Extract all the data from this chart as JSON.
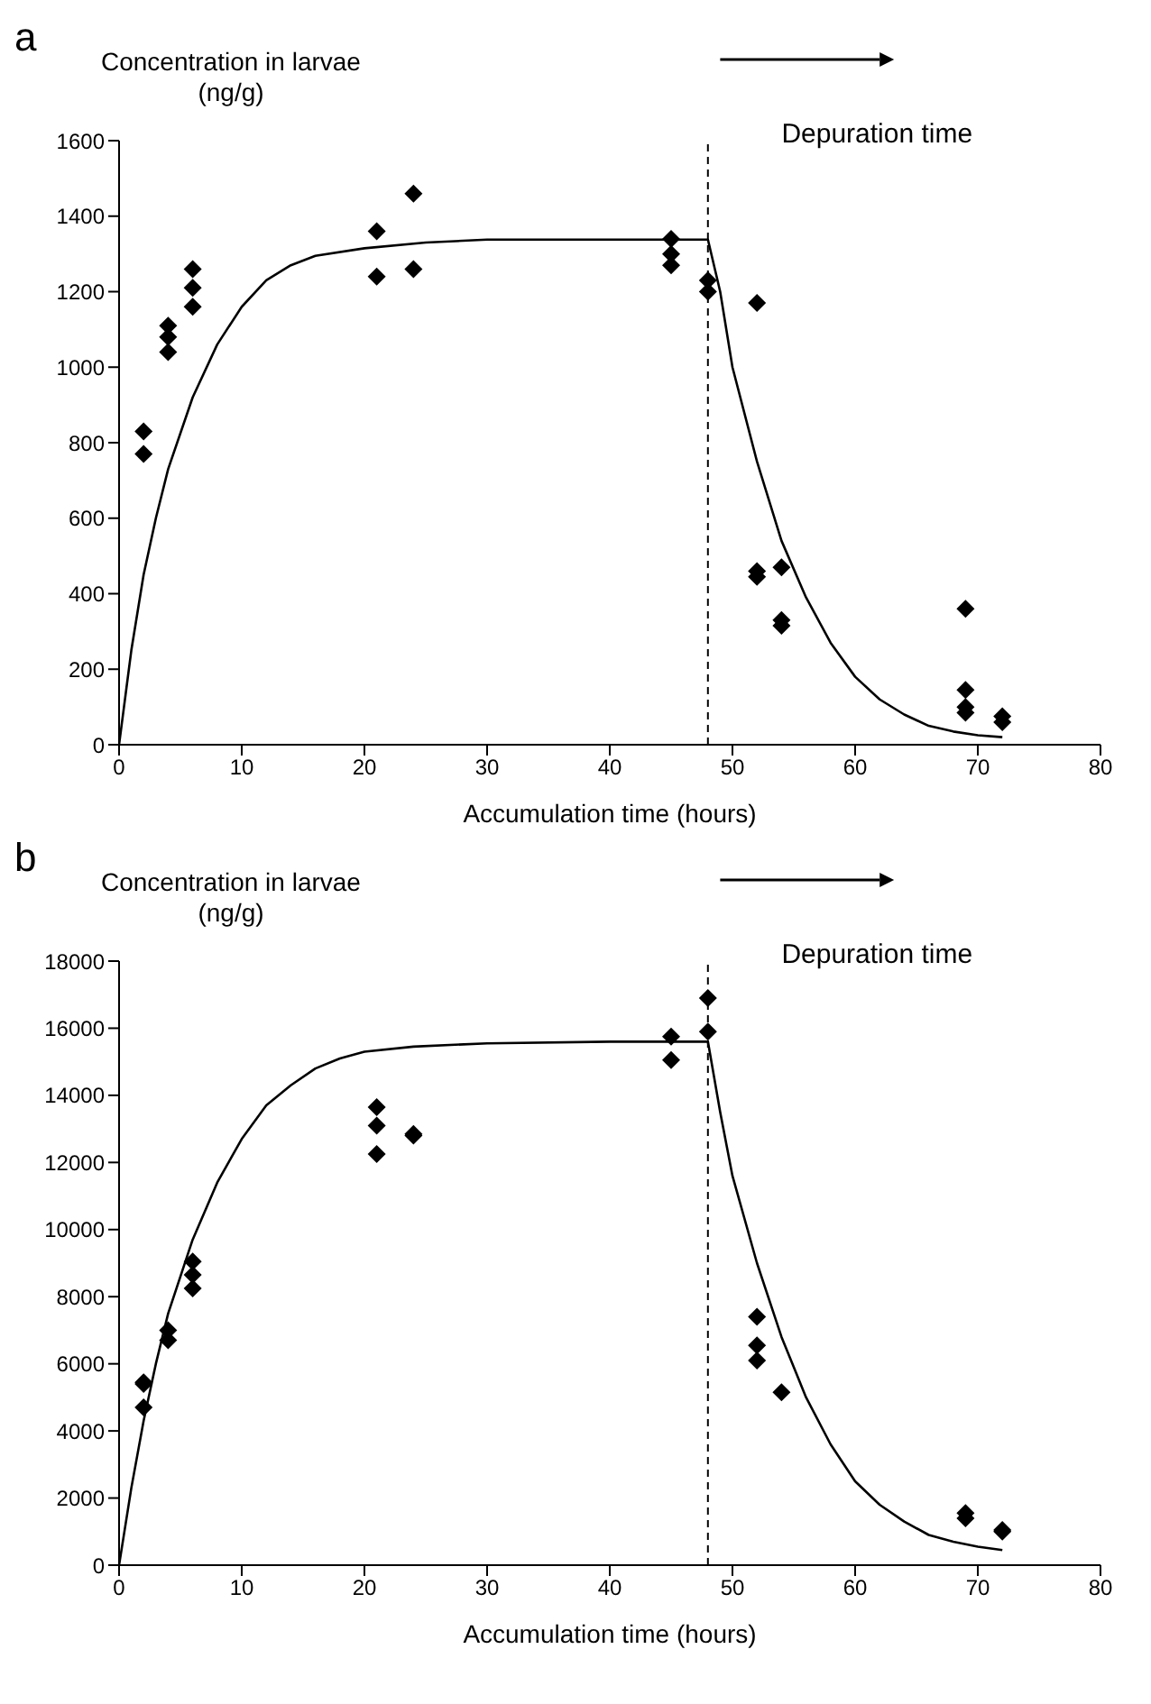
{
  "chart_data": [
    {
      "type": "scatter",
      "title": "a",
      "xlabel": "Accumulation time (hours)",
      "ylabel": "Concentration  in larvae\n(ng/g)",
      "annotations": [
        "Depuration time"
      ],
      "xlim": [
        0,
        80
      ],
      "xticks": [
        0,
        10,
        20,
        30,
        40,
        50,
        60,
        70,
        80
      ],
      "ylim": [
        0,
        1600
      ],
      "yticks": [
        0,
        200,
        400,
        600,
        800,
        1000,
        1200,
        1400,
        1600
      ],
      "marker": "diamond",
      "ref_lines": [
        {
          "axis": "x",
          "value": 48,
          "line_style": "dashed",
          "color": "#000000"
        }
      ],
      "series": [
        {
          "color": "#000000",
          "x": [
            2,
            2,
            4,
            4,
            4,
            6,
            6,
            6,
            21,
            21,
            24,
            24,
            45,
            45,
            45,
            48,
            48,
            52,
            52,
            52,
            54,
            54,
            54,
            69,
            69,
            69,
            69,
            72,
            72
          ],
          "values": [
            830,
            770,
            1110,
            1080,
            1040,
            1260,
            1210,
            1160,
            1360,
            1240,
            1460,
            1260,
            1340,
            1300,
            1270,
            1230,
            1200,
            1170,
            460,
            445,
            470,
            330,
            315,
            360,
            145,
            100,
            85,
            75,
            60
          ]
        },
        {
          "type": "line",
          "color": "#000000",
          "marker": "none",
          "x": [
            0,
            1,
            2,
            3,
            4,
            6,
            8,
            10,
            12,
            14,
            16,
            20,
            25,
            30,
            40,
            48,
            49,
            50,
            52,
            54,
            56,
            58,
            60,
            62,
            64,
            66,
            68,
            70,
            72
          ],
          "values": [
            0,
            250,
            450,
            600,
            730,
            920,
            1060,
            1160,
            1230,
            1270,
            1295,
            1315,
            1330,
            1338,
            1338,
            1338,
            1200,
            1000,
            750,
            540,
            390,
            270,
            180,
            120,
            80,
            50,
            35,
            25,
            20
          ]
        }
      ]
    },
    {
      "type": "scatter",
      "title": "b",
      "xlabel": "Accumulation time (hours)",
      "ylabel": "Concentration  in larvae\n(ng/g)",
      "annotations": [
        "Depuration time"
      ],
      "xlim": [
        0,
        80
      ],
      "xticks": [
        0,
        10,
        20,
        30,
        40,
        50,
        60,
        70,
        80
      ],
      "ylim": [
        0,
        18000
      ],
      "yticks": [
        0,
        2000,
        4000,
        6000,
        8000,
        10000,
        12000,
        14000,
        16000,
        18000
      ],
      "marker": "diamond",
      "ref_lines": [
        {
          "axis": "x",
          "value": 48,
          "line_style": "dashed",
          "color": "#000000"
        }
      ],
      "series": [
        {
          "color": "#000000",
          "x": [
            2,
            2,
            2,
            4,
            4,
            6,
            6,
            6,
            21,
            21,
            21,
            24,
            24,
            45,
            45,
            48,
            48,
            52,
            52,
            52,
            54,
            69,
            69,
            72,
            72
          ],
          "values": [
            5450,
            5400,
            4700,
            7000,
            6700,
            9050,
            8650,
            8250,
            13650,
            13100,
            12250,
            12850,
            12800,
            15750,
            15050,
            16900,
            15900,
            7400,
            6550,
            6100,
            5150,
            1550,
            1400,
            1050,
            1000
          ]
        },
        {
          "type": "line",
          "color": "#000000",
          "marker": "none",
          "x": [
            0,
            1,
            2,
            3,
            4,
            6,
            8,
            10,
            12,
            14,
            16,
            18,
            20,
            24,
            30,
            40,
            48,
            49,
            50,
            52,
            54,
            56,
            58,
            60,
            62,
            64,
            66,
            68,
            70,
            72
          ],
          "values": [
            0,
            2300,
            4300,
            6000,
            7500,
            9700,
            11400,
            12700,
            13700,
            14300,
            14800,
            15100,
            15300,
            15450,
            15550,
            15600,
            15600,
            13500,
            11600,
            9000,
            6800,
            5000,
            3600,
            2500,
            1800,
            1300,
            900,
            700,
            550,
            450
          ]
        }
      ]
    }
  ]
}
